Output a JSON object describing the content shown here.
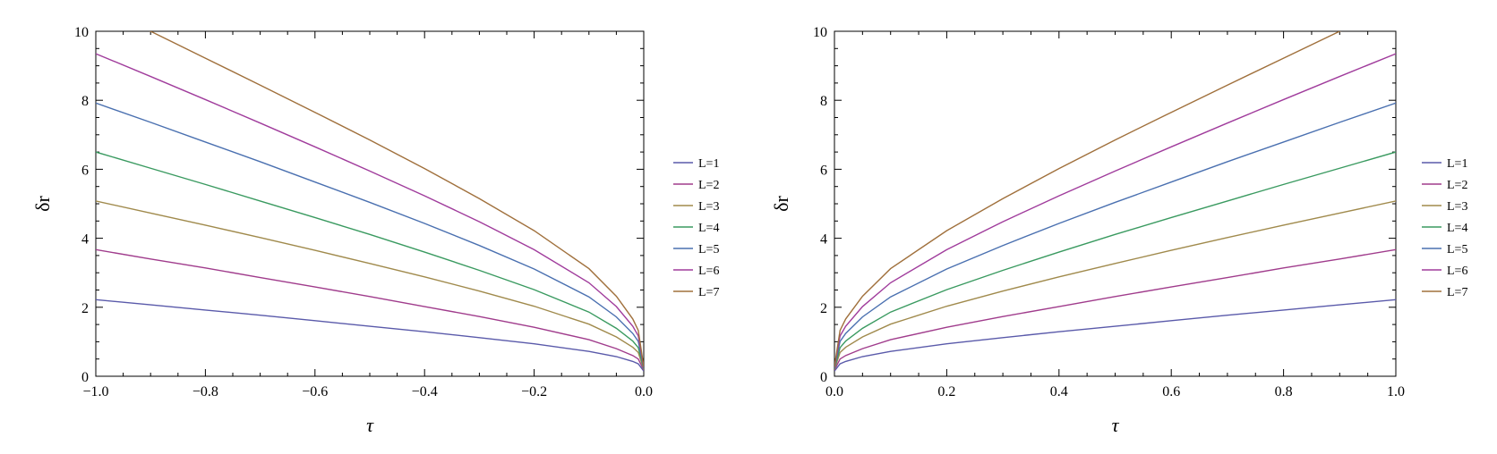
{
  "chart_data": [
    {
      "type": "line",
      "xlabel": "τ",
      "ylabel": "δr",
      "xlim": [
        -1.0,
        0.0
      ],
      "ylim": [
        0,
        10
      ],
      "xticks": [
        "−1.0",
        "−0.8",
        "−0.6",
        "−0.4",
        "−0.2",
        "0.0"
      ],
      "xtick_values": [
        -1.0,
        -0.8,
        -0.6,
        -0.4,
        -0.2,
        0.0
      ],
      "yticks": [
        "0",
        "2",
        "4",
        "6",
        "8",
        "10"
      ],
      "ytick_values": [
        0,
        2,
        4,
        6,
        8,
        10
      ],
      "legend_position": "right",
      "grid": false,
      "x": [
        -1.0,
        -0.9,
        -0.8,
        -0.7,
        -0.6,
        -0.5,
        -0.4,
        -0.3,
        -0.2,
        -0.1,
        -0.05,
        -0.02,
        -0.01,
        0.0
      ],
      "series": [
        {
          "name": "L=1",
          "color": "#5a5aaa",
          "values": [
            2.22,
            2.07,
            1.92,
            1.77,
            1.61,
            1.45,
            1.29,
            1.12,
            0.94,
            0.72,
            0.57,
            0.43,
            0.36,
            0.15
          ]
        },
        {
          "name": "L=2",
          "color": "#a03c8c",
          "values": [
            3.67,
            3.4,
            3.14,
            2.86,
            2.59,
            2.31,
            2.02,
            1.73,
            1.42,
            1.06,
            0.8,
            0.6,
            0.5,
            0.18
          ]
        },
        {
          "name": "L=3",
          "color": "#a08a4c",
          "values": [
            5.08,
            4.73,
            4.38,
            4.02,
            3.65,
            3.27,
            2.88,
            2.47,
            2.03,
            1.51,
            1.14,
            0.84,
            0.69,
            0.2
          ]
        },
        {
          "name": "L=4",
          "color": "#3a9a60",
          "values": [
            6.5,
            6.03,
            5.56,
            5.08,
            4.6,
            4.11,
            3.6,
            3.07,
            2.51,
            1.86,
            1.39,
            1.02,
            0.83,
            0.22
          ]
        },
        {
          "name": "L=5",
          "color": "#4a70b0",
          "values": [
            7.92,
            7.36,
            6.79,
            6.22,
            5.63,
            5.04,
            4.43,
            3.79,
            3.11,
            2.3,
            1.72,
            1.24,
            1.01,
            0.24
          ]
        },
        {
          "name": "L=6",
          "color": "#a03c9c",
          "values": [
            9.35,
            8.69,
            8.02,
            7.34,
            6.65,
            5.95,
            5.23,
            4.48,
            3.67,
            2.71,
            2.02,
            1.45,
            1.17,
            0.26
          ]
        },
        {
          "name": "L=7",
          "color": "#a0703c",
          "values": [
            10.76,
            10.0,
            9.22,
            8.44,
            7.65,
            6.85,
            6.02,
            5.15,
            4.22,
            3.12,
            2.32,
            1.66,
            1.33,
            0.28
          ]
        }
      ]
    },
    {
      "type": "line",
      "xlabel": "τ",
      "ylabel": "δr",
      "xlim": [
        0.0,
        1.0
      ],
      "ylim": [
        0,
        10
      ],
      "xticks": [
        "0.0",
        "0.2",
        "0.4",
        "0.6",
        "0.8",
        "1.0"
      ],
      "xtick_values": [
        0.0,
        0.2,
        0.4,
        0.6,
        0.8,
        1.0
      ],
      "yticks": [
        "0",
        "2",
        "4",
        "6",
        "8",
        "10"
      ],
      "ytick_values": [
        0,
        2,
        4,
        6,
        8,
        10
      ],
      "legend_position": "right",
      "grid": false,
      "x": [
        0.0,
        0.01,
        0.02,
        0.05,
        0.1,
        0.2,
        0.3,
        0.4,
        0.5,
        0.6,
        0.7,
        0.8,
        0.9,
        1.0
      ],
      "series": [
        {
          "name": "L=1",
          "color": "#5a5aaa",
          "values": [
            0.15,
            0.36,
            0.43,
            0.57,
            0.72,
            0.94,
            1.12,
            1.29,
            1.45,
            1.61,
            1.77,
            1.92,
            2.07,
            2.22
          ]
        },
        {
          "name": "L=2",
          "color": "#a03c8c",
          "values": [
            0.18,
            0.5,
            0.6,
            0.8,
            1.06,
            1.42,
            1.73,
            2.02,
            2.31,
            2.59,
            2.86,
            3.14,
            3.4,
            3.67
          ]
        },
        {
          "name": "L=3",
          "color": "#a08a4c",
          "values": [
            0.2,
            0.69,
            0.84,
            1.14,
            1.51,
            2.03,
            2.47,
            2.88,
            3.27,
            3.65,
            4.02,
            4.38,
            4.73,
            5.08
          ]
        },
        {
          "name": "L=4",
          "color": "#3a9a60",
          "values": [
            0.22,
            0.83,
            1.02,
            1.39,
            1.86,
            2.51,
            3.07,
            3.6,
            4.11,
            4.6,
            5.08,
            5.56,
            6.03,
            6.5
          ]
        },
        {
          "name": "L=5",
          "color": "#4a70b0",
          "values": [
            0.24,
            1.01,
            1.24,
            1.72,
            2.3,
            3.11,
            3.79,
            4.43,
            5.04,
            5.63,
            6.22,
            6.79,
            7.36,
            7.92
          ]
        },
        {
          "name": "L=6",
          "color": "#a03c9c",
          "values": [
            0.26,
            1.17,
            1.45,
            2.02,
            2.71,
            3.67,
            4.48,
            5.23,
            5.95,
            6.65,
            7.34,
            8.02,
            8.69,
            9.35
          ]
        },
        {
          "name": "L=7",
          "color": "#a0703c",
          "values": [
            0.28,
            1.33,
            1.66,
            2.32,
            3.12,
            4.22,
            5.15,
            6.02,
            6.85,
            7.65,
            8.44,
            9.22,
            10.0,
            10.76
          ]
        }
      ]
    }
  ]
}
